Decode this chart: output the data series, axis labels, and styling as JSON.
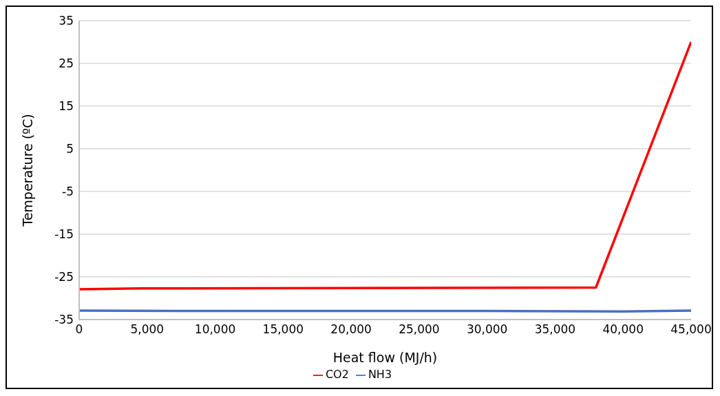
{
  "chart_data": {
    "type": "line",
    "xlabel": "Heat flow (MJ/h)",
    "ylabel": "Temperature (ºC)",
    "xlim": [
      0,
      45000
    ],
    "xticks": [
      {
        "value": 0,
        "label": "0"
      },
      {
        "value": 5000,
        "label": "5,000"
      },
      {
        "value": 10000,
        "label": "10,000"
      },
      {
        "value": 15000,
        "label": "15,000"
      },
      {
        "value": 20000,
        "label": "20,000"
      },
      {
        "value": 25000,
        "label": "25,000"
      },
      {
        "value": 30000,
        "label": "30,000"
      },
      {
        "value": 35000,
        "label": "35,000"
      },
      {
        "value": 40000,
        "label": "40,000"
      },
      {
        "value": 45000,
        "label": "45,000"
      }
    ],
    "ylim": [
      -35,
      35
    ],
    "yticks": [
      -35,
      -25,
      -15,
      -5,
      5,
      15,
      25,
      35
    ],
    "grid": "y",
    "legend": "bottom",
    "marker": "none",
    "series": [
      {
        "name": "CO2",
        "color": "#ff0000",
        "x": [
          0,
          4500,
          38000,
          45000
        ],
        "values": [
          -27.9,
          -27.7,
          -27.5,
          30
        ]
      },
      {
        "name": "NH3",
        "color": "#4472c4",
        "x": [
          0,
          10000,
          20000,
          30000,
          40000,
          45000
        ],
        "values": [
          -32.9,
          -33,
          -33,
          -33,
          -33.1,
          -32.9
        ]
      }
    ]
  }
}
